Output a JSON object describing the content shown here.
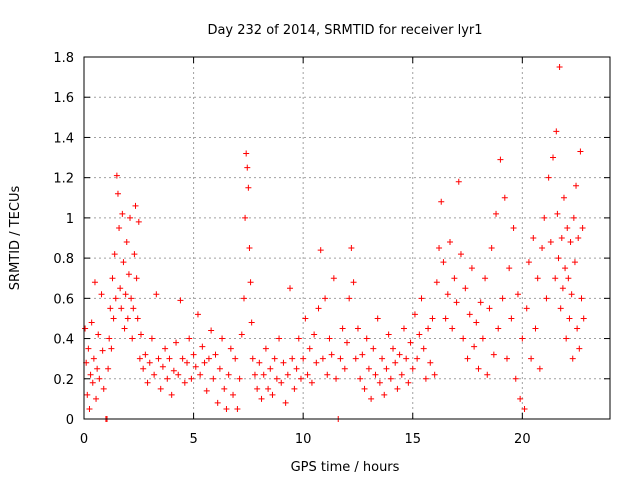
{
  "chart_data": {
    "type": "scatter",
    "title": "Day 232 of 2014, SRMTID for receiver lyr1",
    "xlabel": "GPS time / hours",
    "ylabel": "SRMTID / TECUs",
    "xlim": [
      0,
      24
    ],
    "ylim": [
      0,
      1.8
    ],
    "xticks": [
      0,
      5,
      10,
      15,
      20
    ],
    "xtick_labels": [
      "0",
      "5",
      "10",
      "15",
      "20"
    ],
    "yticks": [
      0,
      0.2,
      0.4,
      0.6,
      0.8,
      1.0,
      1.2,
      1.4,
      1.6,
      1.8
    ],
    "ytick_labels": [
      "0",
      "0.2",
      "0.4",
      "0.6",
      "0.8",
      "1",
      "1.2",
      "1.4",
      "1.6",
      "1.8"
    ],
    "grid": true,
    "marker": "+",
    "color": "#ff0000",
    "series": [
      {
        "name": "SRMTID",
        "points": [
          [
            0.05,
            0.45
          ],
          [
            0.1,
            0.28
          ],
          [
            0.15,
            0.12
          ],
          [
            0.2,
            0.35
          ],
          [
            0.25,
            0.05
          ],
          [
            0.3,
            0.22
          ],
          [
            0.35,
            0.48
          ],
          [
            0.4,
            0.18
          ],
          [
            0.45,
            0.3
          ],
          [
            0.5,
            0.68
          ],
          [
            0.55,
            0.1
          ],
          [
            0.6,
            0.25
          ],
          [
            0.65,
            0.42
          ],
          [
            0.7,
            0.2
          ],
          [
            0.8,
            0.62
          ],
          [
            0.85,
            0.34
          ],
          [
            0.9,
            0.15
          ],
          [
            1.0,
            0.0
          ],
          [
            1.05,
            0.0
          ],
          [
            1.1,
            0.25
          ],
          [
            1.15,
            0.4
          ],
          [
            1.2,
            0.55
          ],
          [
            1.25,
            0.35
          ],
          [
            1.3,
            0.7
          ],
          [
            1.35,
            0.5
          ],
          [
            1.4,
            0.82
          ],
          [
            1.45,
            0.6
          ],
          [
            1.5,
            1.21
          ],
          [
            1.55,
            1.12
          ],
          [
            1.6,
            0.95
          ],
          [
            1.65,
            0.65
          ],
          [
            1.7,
            0.55
          ],
          [
            1.75,
            1.02
          ],
          [
            1.8,
            0.78
          ],
          [
            1.85,
            0.45
          ],
          [
            1.9,
            0.62
          ],
          [
            1.95,
            0.88
          ],
          [
            2.0,
            0.5
          ],
          [
            2.05,
            0.72
          ],
          [
            2.1,
            1.0
          ],
          [
            2.15,
            0.6
          ],
          [
            2.2,
            0.4
          ],
          [
            2.25,
            0.55
          ],
          [
            2.3,
            0.82
          ],
          [
            2.35,
            1.06
          ],
          [
            2.4,
            0.7
          ],
          [
            2.45,
            0.5
          ],
          [
            2.5,
            0.98
          ],
          [
            2.55,
            0.3
          ],
          [
            2.6,
            0.42
          ],
          [
            2.7,
            0.25
          ],
          [
            2.8,
            0.32
          ],
          [
            2.9,
            0.18
          ],
          [
            3.0,
            0.28
          ],
          [
            3.1,
            0.4
          ],
          [
            3.2,
            0.22
          ],
          [
            3.3,
            0.62
          ],
          [
            3.4,
            0.3
          ],
          [
            3.5,
            0.15
          ],
          [
            3.6,
            0.26
          ],
          [
            3.7,
            0.35
          ],
          [
            3.8,
            0.2
          ],
          [
            3.9,
            0.3
          ],
          [
            4.0,
            0.12
          ],
          [
            4.1,
            0.24
          ],
          [
            4.2,
            0.38
          ],
          [
            4.3,
            0.22
          ],
          [
            4.4,
            0.59
          ],
          [
            4.5,
            0.3
          ],
          [
            4.6,
            0.18
          ],
          [
            4.7,
            0.28
          ],
          [
            4.8,
            0.4
          ],
          [
            4.9,
            0.2
          ],
          [
            5.0,
            0.32
          ],
          [
            5.1,
            0.26
          ],
          [
            5.2,
            0.52
          ],
          [
            5.3,
            0.22
          ],
          [
            5.4,
            0.36
          ],
          [
            5.5,
            0.28
          ],
          [
            5.6,
            0.14
          ],
          [
            5.7,
            0.3
          ],
          [
            5.8,
            0.44
          ],
          [
            5.9,
            0.2
          ],
          [
            6.0,
            0.32
          ],
          [
            6.1,
            0.08
          ],
          [
            6.2,
            0.25
          ],
          [
            6.3,
            0.4
          ],
          [
            6.4,
            0.15
          ],
          [
            6.5,
            0.05
          ],
          [
            6.6,
            0.22
          ],
          [
            6.7,
            0.35
          ],
          [
            6.8,
            0.12
          ],
          [
            6.9,
            0.3
          ],
          [
            7.0,
            0.05
          ],
          [
            7.1,
            0.2
          ],
          [
            7.2,
            0.42
          ],
          [
            7.3,
            0.6
          ],
          [
            7.35,
            1.0
          ],
          [
            7.4,
            1.32
          ],
          [
            7.45,
            1.25
          ],
          [
            7.5,
            1.15
          ],
          [
            7.55,
            0.85
          ],
          [
            7.6,
            0.68
          ],
          [
            7.65,
            0.48
          ],
          [
            7.7,
            0.3
          ],
          [
            7.8,
            0.22
          ],
          [
            7.9,
            0.15
          ],
          [
            8.0,
            0.28
          ],
          [
            8.1,
            0.1
          ],
          [
            8.2,
            0.22
          ],
          [
            8.3,
            0.35
          ],
          [
            8.4,
            0.15
          ],
          [
            8.5,
            0.25
          ],
          [
            8.6,
            0.12
          ],
          [
            8.7,
            0.3
          ],
          [
            8.8,
            0.2
          ],
          [
            8.9,
            0.4
          ],
          [
            9.0,
            0.18
          ],
          [
            9.1,
            0.28
          ],
          [
            9.2,
            0.08
          ],
          [
            9.3,
            0.22
          ],
          [
            9.4,
            0.65
          ],
          [
            9.5,
            0.3
          ],
          [
            9.6,
            0.15
          ],
          [
            9.7,
            0.25
          ],
          [
            9.8,
            0.4
          ],
          [
            9.9,
            0.2
          ],
          [
            10.0,
            0.3
          ],
          [
            10.1,
            0.5
          ],
          [
            10.2,
            0.22
          ],
          [
            10.3,
            0.35
          ],
          [
            10.4,
            0.18
          ],
          [
            10.5,
            0.42
          ],
          [
            10.6,
            0.28
          ],
          [
            10.7,
            0.55
          ],
          [
            10.8,
            0.84
          ],
          [
            10.9,
            0.3
          ],
          [
            11.0,
            0.6
          ],
          [
            11.1,
            0.22
          ],
          [
            11.2,
            0.4
          ],
          [
            11.3,
            0.32
          ],
          [
            11.4,
            0.7
          ],
          [
            11.5,
            0.2
          ],
          [
            11.6,
            0.0
          ],
          [
            11.7,
            0.3
          ],
          [
            11.8,
            0.45
          ],
          [
            11.9,
            0.25
          ],
          [
            12.0,
            0.38
          ],
          [
            12.1,
            0.6
          ],
          [
            12.2,
            0.85
          ],
          [
            12.3,
            0.68
          ],
          [
            12.4,
            0.3
          ],
          [
            12.5,
            0.45
          ],
          [
            12.6,
            0.2
          ],
          [
            12.7,
            0.32
          ],
          [
            12.8,
            0.15
          ],
          [
            12.9,
            0.4
          ],
          [
            13.0,
            0.25
          ],
          [
            13.1,
            0.1
          ],
          [
            13.2,
            0.35
          ],
          [
            13.3,
            0.22
          ],
          [
            13.4,
            0.5
          ],
          [
            13.5,
            0.18
          ],
          [
            13.6,
            0.3
          ],
          [
            13.7,
            0.12
          ],
          [
            13.8,
            0.25
          ],
          [
            13.9,
            0.42
          ],
          [
            14.0,
            0.2
          ],
          [
            14.1,
            0.35
          ],
          [
            14.2,
            0.28
          ],
          [
            14.3,
            0.15
          ],
          [
            14.4,
            0.32
          ],
          [
            14.5,
            0.22
          ],
          [
            14.6,
            0.45
          ],
          [
            14.7,
            0.3
          ],
          [
            14.8,
            0.18
          ],
          [
            14.9,
            0.38
          ],
          [
            15.0,
            0.25
          ],
          [
            15.1,
            0.52
          ],
          [
            15.2,
            0.3
          ],
          [
            15.3,
            0.42
          ],
          [
            15.4,
            0.6
          ],
          [
            15.5,
            0.35
          ],
          [
            15.6,
            0.2
          ],
          [
            15.7,
            0.45
          ],
          [
            15.8,
            0.28
          ],
          [
            15.9,
            0.5
          ],
          [
            16.0,
            0.22
          ],
          [
            16.1,
            0.68
          ],
          [
            16.2,
            0.85
          ],
          [
            16.3,
            1.08
          ],
          [
            16.4,
            0.78
          ],
          [
            16.5,
            0.5
          ],
          [
            16.6,
            0.62
          ],
          [
            16.7,
            0.88
          ],
          [
            16.8,
            0.45
          ],
          [
            16.9,
            0.7
          ],
          [
            17.0,
            0.58
          ],
          [
            17.1,
            1.18
          ],
          [
            17.2,
            0.82
          ],
          [
            17.3,
            0.4
          ],
          [
            17.4,
            0.65
          ],
          [
            17.5,
            0.3
          ],
          [
            17.6,
            0.52
          ],
          [
            17.7,
            0.75
          ],
          [
            17.8,
            0.36
          ],
          [
            17.9,
            0.48
          ],
          [
            18.0,
            0.25
          ],
          [
            18.1,
            0.58
          ],
          [
            18.2,
            0.4
          ],
          [
            18.3,
            0.7
          ],
          [
            18.4,
            0.22
          ],
          [
            18.5,
            0.55
          ],
          [
            18.6,
            0.85
          ],
          [
            18.7,
            0.32
          ],
          [
            18.8,
            1.02
          ],
          [
            18.9,
            0.45
          ],
          [
            19.0,
            1.29
          ],
          [
            19.1,
            0.6
          ],
          [
            19.2,
            1.1
          ],
          [
            19.3,
            0.3
          ],
          [
            19.4,
            0.75
          ],
          [
            19.5,
            0.5
          ],
          [
            19.6,
            0.95
          ],
          [
            19.7,
            0.2
          ],
          [
            19.8,
            0.62
          ],
          [
            19.9,
            0.1
          ],
          [
            20.0,
            0.4
          ],
          [
            20.1,
            0.05
          ],
          [
            20.2,
            0.55
          ],
          [
            20.3,
            0.78
          ],
          [
            20.4,
            0.3
          ],
          [
            20.5,
            0.9
          ],
          [
            20.6,
            0.45
          ],
          [
            20.7,
            0.7
          ],
          [
            20.8,
            0.25
          ],
          [
            20.9,
            0.85
          ],
          [
            21.0,
            1.0
          ],
          [
            21.1,
            0.6
          ],
          [
            21.2,
            1.2
          ],
          [
            21.3,
            0.88
          ],
          [
            21.4,
            1.3
          ],
          [
            21.5,
            0.7
          ],
          [
            21.55,
            1.43
          ],
          [
            21.6,
            1.02
          ],
          [
            21.65,
            0.8
          ],
          [
            21.7,
            1.75
          ],
          [
            21.75,
            0.55
          ],
          [
            21.8,
            0.9
          ],
          [
            21.85,
            0.65
          ],
          [
            21.9,
            1.1
          ],
          [
            21.95,
            0.75
          ],
          [
            22.0,
            0.4
          ],
          [
            22.05,
            0.95
          ],
          [
            22.1,
            0.7
          ],
          [
            22.15,
            0.5
          ],
          [
            22.2,
            0.88
          ],
          [
            22.25,
            0.62
          ],
          [
            22.3,
            0.3
          ],
          [
            22.35,
            1.0
          ],
          [
            22.4,
            0.78
          ],
          [
            22.45,
            1.16
          ],
          [
            22.5,
            0.45
          ],
          [
            22.55,
            0.9
          ],
          [
            22.6,
            0.35
          ],
          [
            22.65,
            1.33
          ],
          [
            22.7,
            0.6
          ],
          [
            22.75,
            0.95
          ],
          [
            22.8,
            0.5
          ]
        ]
      }
    ]
  }
}
